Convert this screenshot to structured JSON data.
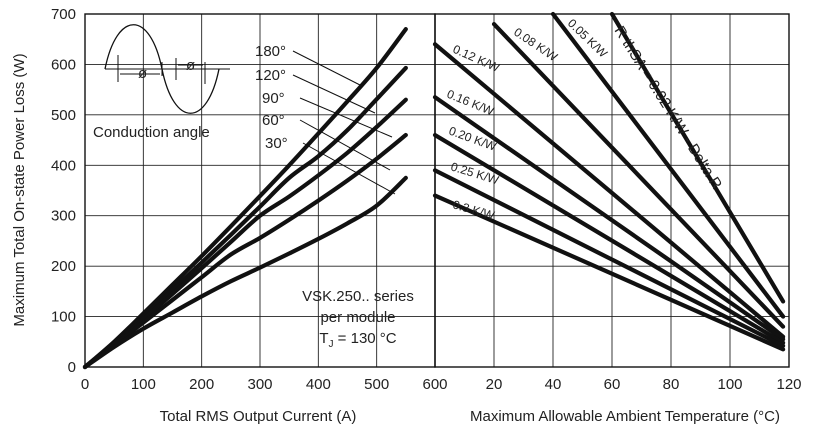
{
  "chart_data": [
    {
      "type": "line",
      "xlabel": "Total RMS Output Current (A)",
      "ylabel": "Maximum Total On-state Power Loss (W)",
      "xlim": [
        0,
        600
      ],
      "ylim": [
        0,
        700
      ],
      "xticks": [
        "0",
        "100",
        "200",
        "300",
        "400",
        "500",
        "600"
      ],
      "yticks": [
        "0",
        "100",
        "200",
        "300",
        "400",
        "500",
        "600",
        "700"
      ],
      "grid": true,
      "inset_label": "Conduction angle",
      "inset_phi_label": "ø",
      "annotation": [
        "VSK.250.. series",
        "per module",
        "T",
        "J",
        " = 130 °C"
      ],
      "series": [
        {
          "name": "180°",
          "x": [
            0,
            50,
            100,
            150,
            200,
            250,
            300,
            350,
            400,
            450,
            500,
            550
          ],
          "y": [
            0,
            50,
            106,
            163,
            220,
            279,
            339,
            400,
            463,
            527,
            593,
            670
          ]
        },
        {
          "name": "120°",
          "x": [
            0,
            50,
            100,
            150,
            200,
            250,
            300,
            350,
            400,
            450,
            500,
            550
          ],
          "y": [
            0,
            48,
            100,
            153,
            207,
            262,
            318,
            375,
            418,
            470,
            531,
            593
          ]
        },
        {
          "name": "90°",
          "x": [
            0,
            50,
            100,
            150,
            200,
            250,
            300,
            350,
            400,
            450,
            500,
            550
          ],
          "y": [
            0,
            46,
            95,
            145,
            196,
            248,
            300,
            338,
            380,
            425,
            476,
            530
          ]
        },
        {
          "name": "60°",
          "x": [
            0,
            50,
            100,
            150,
            200,
            250,
            300,
            350,
            400,
            450,
            500,
            550
          ],
          "y": [
            0,
            44,
            88,
            133,
            178,
            223,
            256,
            292,
            330,
            370,
            413,
            460
          ]
        },
        {
          "name": "30°",
          "x": [
            0,
            50,
            100,
            150,
            200,
            250,
            300,
            350,
            400,
            450,
            500,
            550
          ],
          "y": [
            0,
            40,
            76,
            108,
            140,
            170,
            197,
            225,
            254,
            285,
            320,
            375
          ]
        }
      ]
    },
    {
      "type": "line",
      "xlabel": "Maximum Allowable Ambient Temperature (°C)",
      "xlim": [
        0,
        120
      ],
      "ylim": [
        0,
        700
      ],
      "xticks": [
        "20",
        "40",
        "60",
        "80",
        "100",
        "120"
      ],
      "grid": true,
      "series": [
        {
          "name": "R thSA = 0.02 K/W - Delta R",
          "x": [
            60,
            118
          ],
          "y": [
            700,
            130
          ]
        },
        {
          "name": "0.05 K/W",
          "x": [
            40,
            118
          ],
          "y": [
            700,
            100
          ]
        },
        {
          "name": "0.08 K/W",
          "x": [
            20,
            118
          ],
          "y": [
            680,
            80
          ]
        },
        {
          "name": "0.12 K/W",
          "x": [
            0,
            118
          ],
          "y": [
            640,
            60
          ]
        },
        {
          "name": "0.16 K/W",
          "x": [
            0,
            118
          ],
          "y": [
            535,
            55
          ]
        },
        {
          "name": "0.20 K/W",
          "x": [
            0,
            118
          ],
          "y": [
            460,
            48
          ]
        },
        {
          "name": "0.25 K/W",
          "x": [
            0,
            118
          ],
          "y": [
            390,
            42
          ]
        },
        {
          "name": "0.3 K/W",
          "x": [
            0,
            118
          ],
          "y": [
            340,
            35
          ]
        }
      ]
    }
  ]
}
